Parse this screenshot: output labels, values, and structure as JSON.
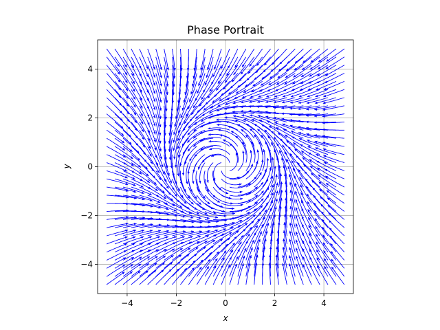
{
  "chart_data": {
    "type": "streamplot",
    "title": "Phase Portrait",
    "xlabel": "x",
    "ylabel": "y",
    "xlim": [
      -5.2,
      5.2
    ],
    "ylim": [
      -5.2,
      5.2
    ],
    "x_ticks": [
      -4,
      -2,
      0,
      2,
      4
    ],
    "y_ticks": [
      -4,
      -2,
      0,
      2,
      4
    ],
    "x_tick_labels": [
      "−4",
      "−2",
      "0",
      "2",
      "4"
    ],
    "y_tick_labels": [
      "−4",
      "−2",
      "0",
      "2",
      "4"
    ],
    "grid": true,
    "aspect": "equal",
    "domain": {
      "x": [
        -5,
        5
      ],
      "y": [
        -5,
        5
      ]
    },
    "limit_cycle_radius": 2,
    "series": [
      {
        "color": "#0000ff"
      }
    ]
  }
}
